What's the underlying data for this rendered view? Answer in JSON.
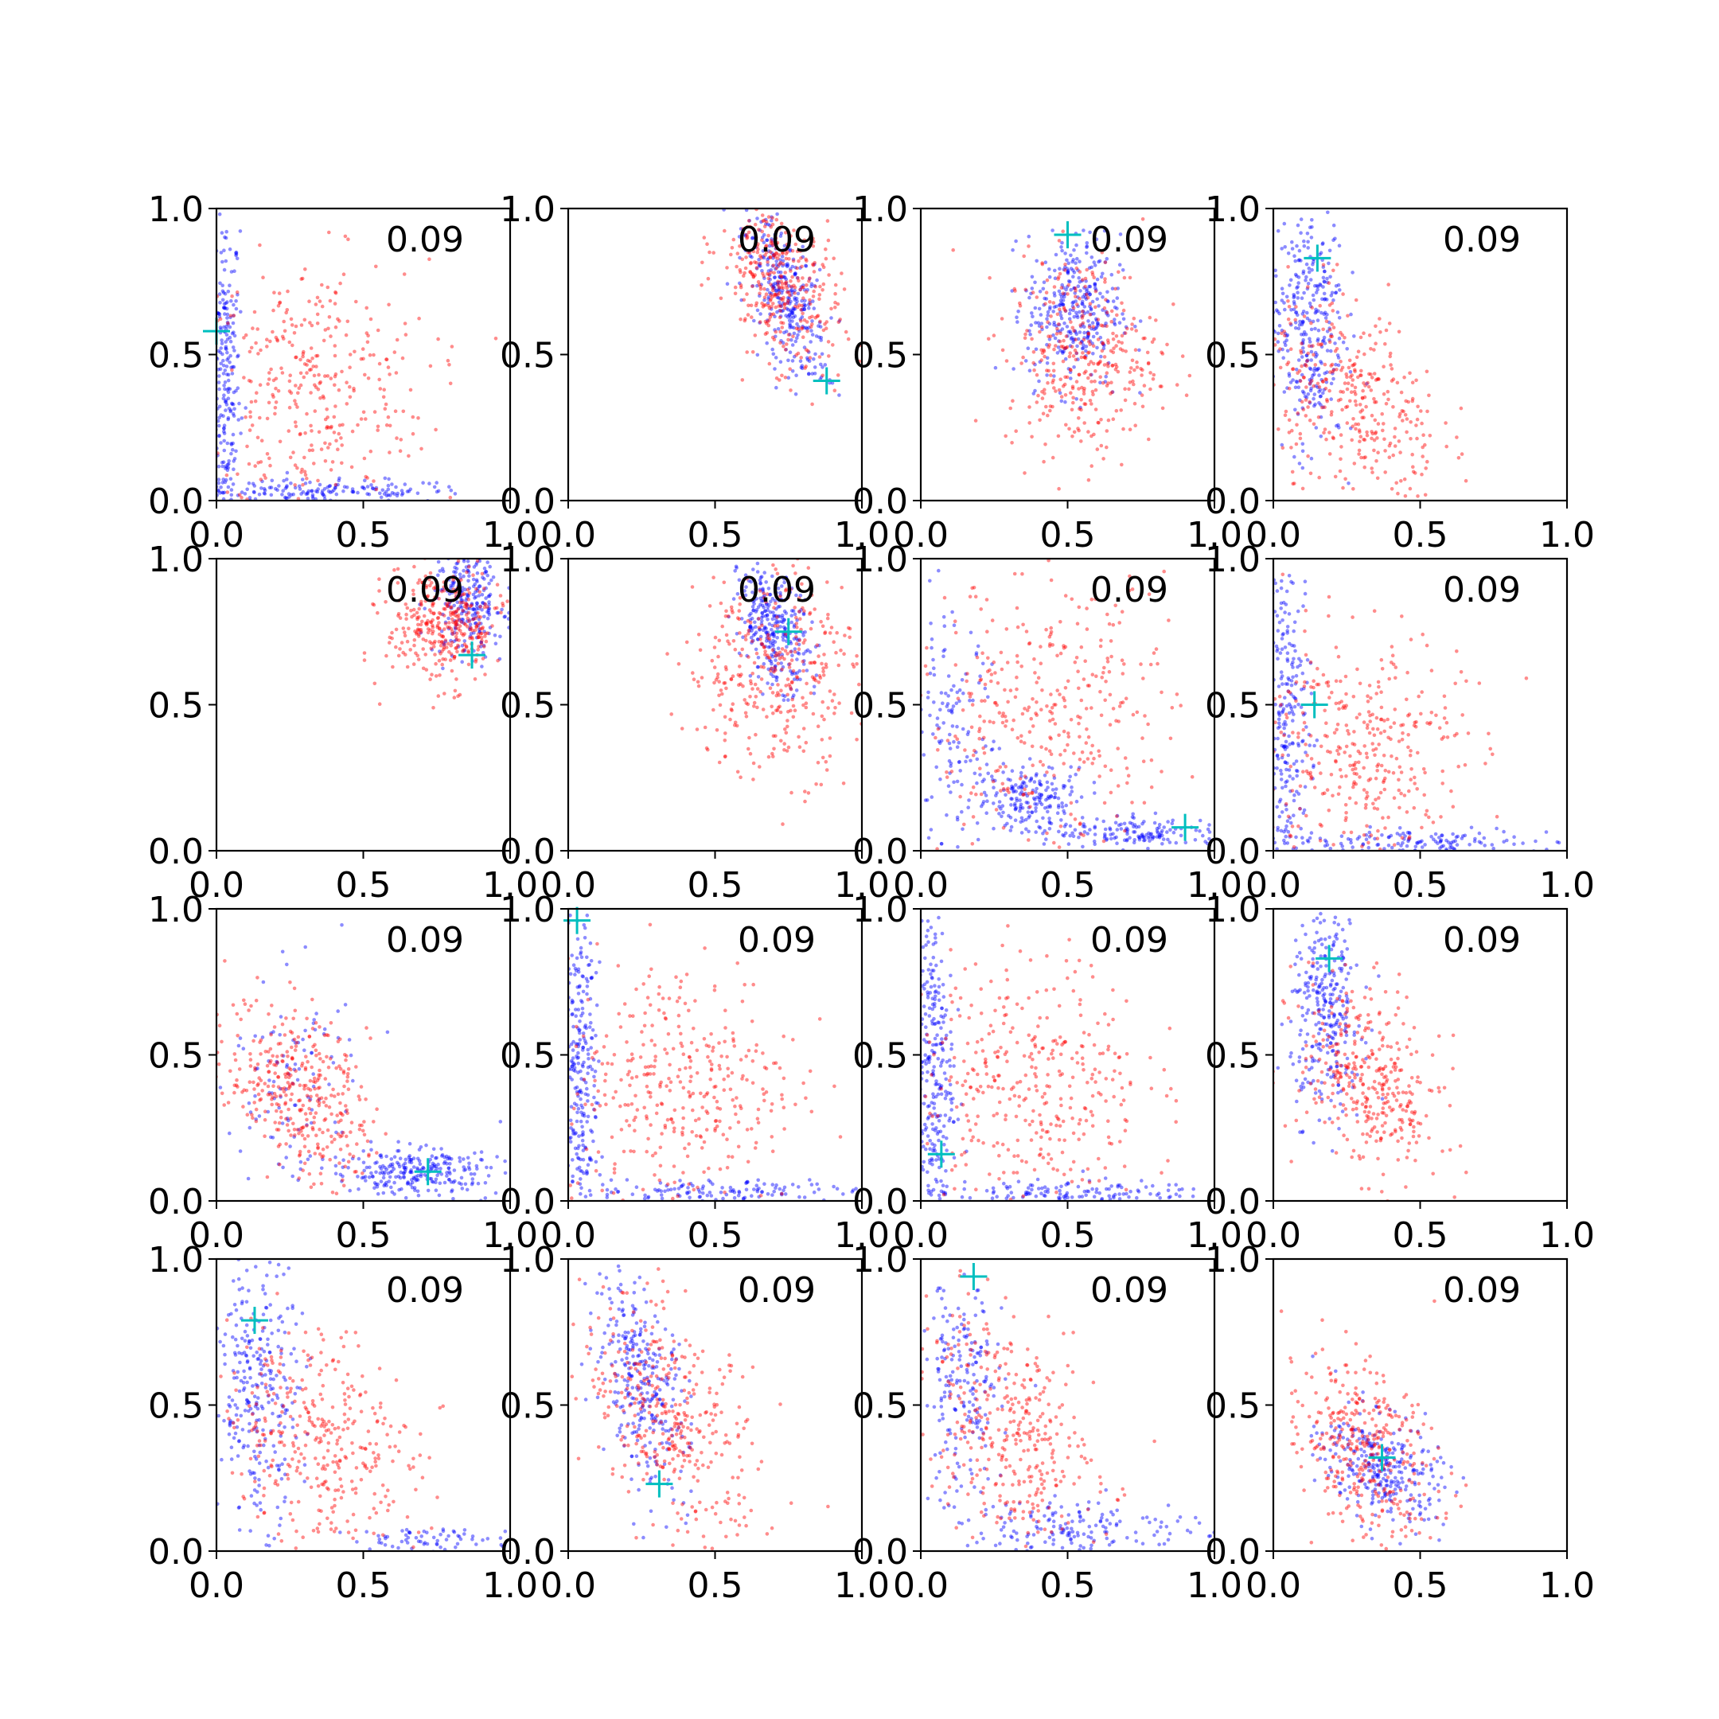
{
  "figure": {
    "layout": "4x4 grid of scatter plots",
    "colors": {
      "series_blue": "#0000ff",
      "series_red": "#ff0000",
      "marker": "#00bfbf",
      "axes": "#000000"
    }
  },
  "chart_data": [
    {
      "type": "scatter",
      "annotation": "0.09",
      "xlim": [
        0,
        1
      ],
      "ylim": [
        0,
        1
      ],
      "xticks": [
        "0.0",
        "0.5",
        "1.0"
      ],
      "yticks": [
        "0.0",
        "0.5",
        "1.0"
      ],
      "marker": {
        "x": 0.0,
        "y": 0.58
      },
      "clusters": {
        "blue": [
          {
            "cx": 0.03,
            "cy": 0.4,
            "sx": 0.025,
            "sy": 0.3,
            "n": 260
          },
          {
            "cx": 0.35,
            "cy": 0.03,
            "sx": 0.25,
            "sy": 0.02,
            "n": 170
          }
        ],
        "red": [
          {
            "cx": 0.32,
            "cy": 0.38,
            "sx": 0.2,
            "sy": 0.22,
            "n": 360
          }
        ]
      }
    },
    {
      "type": "scatter",
      "annotation": "0.09",
      "xlim": [
        0,
        1
      ],
      "ylim": [
        0,
        1
      ],
      "xticks": [
        "0.0",
        "0.5",
        "1.0"
      ],
      "yticks": [
        "0.0",
        "0.5",
        "1.0"
      ],
      "marker": {
        "x": 0.88,
        "y": 0.41
      },
      "clusters": {
        "blue": [
          {
            "cx": 0.74,
            "cy": 0.7,
            "sx": 0.07,
            "sy": 0.14,
            "n": 320,
            "rho": -0.6
          }
        ],
        "red": [
          {
            "cx": 0.72,
            "cy": 0.74,
            "sx": 0.1,
            "sy": 0.15,
            "n": 360,
            "rho": -0.4
          }
        ]
      }
    },
    {
      "type": "scatter",
      "annotation": "0.09",
      "xlim": [
        0,
        1
      ],
      "ylim": [
        0,
        1
      ],
      "xticks": [
        "0.0",
        "0.5",
        "1.0"
      ],
      "yticks": [
        "0.0",
        "0.5",
        "1.0"
      ],
      "marker": {
        "x": 0.5,
        "y": 0.91
      },
      "clusters": {
        "blue": [
          {
            "cx": 0.52,
            "cy": 0.65,
            "sx": 0.08,
            "sy": 0.13,
            "n": 330
          }
        ],
        "red": [
          {
            "cx": 0.55,
            "cy": 0.5,
            "sx": 0.13,
            "sy": 0.17,
            "n": 360
          }
        ]
      }
    },
    {
      "type": "scatter",
      "annotation": "0.09",
      "xlim": [
        0,
        1
      ],
      "ylim": [
        0,
        1
      ],
      "xticks": [
        "0.0",
        "0.5",
        "1.0"
      ],
      "yticks": [
        "0.0",
        "0.5",
        "1.0"
      ],
      "marker": {
        "x": 0.15,
        "y": 0.83
      },
      "clusters": {
        "blue": [
          {
            "cx": 0.12,
            "cy": 0.62,
            "sx": 0.06,
            "sy": 0.22,
            "n": 320
          }
        ],
        "red": [
          {
            "cx": 0.27,
            "cy": 0.35,
            "sx": 0.15,
            "sy": 0.18,
            "n": 360,
            "rho": -0.4
          }
        ]
      }
    },
    {
      "type": "scatter",
      "annotation": "0.09",
      "xlim": [
        0,
        1
      ],
      "ylim": [
        0,
        1
      ],
      "xticks": [
        "0.0",
        "0.5",
        "1.0"
      ],
      "yticks": [
        "0.0",
        "0.5",
        "1.0"
      ],
      "marker": {
        "x": 0.87,
        "y": 0.67
      },
      "clusters": {
        "blue": [
          {
            "cx": 0.86,
            "cy": 0.86,
            "sx": 0.06,
            "sy": 0.1,
            "n": 260
          }
        ],
        "red": [
          {
            "cx": 0.78,
            "cy": 0.77,
            "sx": 0.1,
            "sy": 0.1,
            "n": 360
          }
        ]
      }
    },
    {
      "type": "scatter",
      "annotation": "0.09",
      "xlim": [
        0,
        1
      ],
      "ylim": [
        0,
        1
      ],
      "xticks": [
        "0.0",
        "0.5",
        "1.0"
      ],
      "yticks": [
        "0.0",
        "0.5",
        "1.0"
      ],
      "marker": {
        "x": 0.75,
        "y": 0.75
      },
      "clusters": {
        "blue": [
          {
            "cx": 0.7,
            "cy": 0.76,
            "sx": 0.06,
            "sy": 0.1,
            "n": 300,
            "rho": -0.4
          }
        ],
        "red": [
          {
            "cx": 0.7,
            "cy": 0.62,
            "sx": 0.15,
            "sy": 0.18,
            "n": 360
          }
        ]
      }
    },
    {
      "type": "scatter",
      "annotation": "0.09",
      "xlim": [
        0,
        1
      ],
      "ylim": [
        0,
        1
      ],
      "xticks": [
        "0.0",
        "0.5",
        "1.0"
      ],
      "yticks": [
        "0.0",
        "0.5",
        "1.0"
      ],
      "marker": {
        "x": 0.9,
        "y": 0.08
      },
      "clusters": {
        "blue": [
          {
            "cx": 0.1,
            "cy": 0.4,
            "sx": 0.07,
            "sy": 0.2,
            "n": 120
          },
          {
            "cx": 0.38,
            "cy": 0.18,
            "sx": 0.1,
            "sy": 0.06,
            "n": 200
          },
          {
            "cx": 0.75,
            "cy": 0.06,
            "sx": 0.15,
            "sy": 0.025,
            "n": 140
          }
        ],
        "red": [
          {
            "cx": 0.42,
            "cy": 0.45,
            "sx": 0.22,
            "sy": 0.24,
            "n": 360
          }
        ]
      }
    },
    {
      "type": "scatter",
      "annotation": "0.09",
      "xlim": [
        0,
        1
      ],
      "ylim": [
        0,
        1
      ],
      "xticks": [
        "0.0",
        "0.5",
        "1.0"
      ],
      "yticks": [
        "0.0",
        "0.5",
        "1.0"
      ],
      "marker": {
        "x": 0.14,
        "y": 0.5
      },
      "clusters": {
        "blue": [
          {
            "cx": 0.05,
            "cy": 0.45,
            "sx": 0.04,
            "sy": 0.28,
            "n": 260
          },
          {
            "cx": 0.45,
            "cy": 0.03,
            "sx": 0.25,
            "sy": 0.02,
            "n": 140
          }
        ],
        "red": [
          {
            "cx": 0.3,
            "cy": 0.35,
            "sx": 0.17,
            "sy": 0.2,
            "n": 360
          }
        ]
      }
    },
    {
      "type": "scatter",
      "annotation": "0.09",
      "xlim": [
        0,
        1
      ],
      "ylim": [
        0,
        1
      ],
      "xticks": [
        "0.0",
        "0.5",
        "1.0"
      ],
      "yticks": [
        "0.0",
        "0.5",
        "1.0"
      ],
      "marker": {
        "x": 0.72,
        "y": 0.1
      },
      "clusters": {
        "blue": [
          {
            "cx": 0.25,
            "cy": 0.4,
            "sx": 0.12,
            "sy": 0.2,
            "n": 110
          },
          {
            "cx": 0.68,
            "cy": 0.1,
            "sx": 0.15,
            "sy": 0.04,
            "n": 260
          }
        ],
        "red": [
          {
            "cx": 0.28,
            "cy": 0.38,
            "sx": 0.12,
            "sy": 0.15,
            "n": 360,
            "rho": -0.4
          }
        ]
      }
    },
    {
      "type": "scatter",
      "annotation": "0.09",
      "xlim": [
        0,
        1
      ],
      "ylim": [
        0,
        1
      ],
      "xticks": [
        "0.0",
        "0.5",
        "1.0"
      ],
      "yticks": [
        "0.0",
        "0.5",
        "1.0"
      ],
      "marker": {
        "x": 0.03,
        "y": 0.96
      },
      "clusters": {
        "blue": [
          {
            "cx": 0.04,
            "cy": 0.45,
            "sx": 0.035,
            "sy": 0.28,
            "n": 280
          },
          {
            "cx": 0.45,
            "cy": 0.03,
            "sx": 0.28,
            "sy": 0.02,
            "n": 140
          }
        ],
        "red": [
          {
            "cx": 0.38,
            "cy": 0.4,
            "sx": 0.2,
            "sy": 0.22,
            "n": 360
          }
        ]
      }
    },
    {
      "type": "scatter",
      "annotation": "0.09",
      "xlim": [
        0,
        1
      ],
      "ylim": [
        0,
        1
      ],
      "xticks": [
        "0.0",
        "0.5",
        "1.0"
      ],
      "yticks": [
        "0.0",
        "0.5",
        "1.0"
      ],
      "marker": {
        "x": 0.07,
        "y": 0.16
      },
      "clusters": {
        "blue": [
          {
            "cx": 0.04,
            "cy": 0.45,
            "sx": 0.035,
            "sy": 0.28,
            "n": 280
          },
          {
            "cx": 0.45,
            "cy": 0.03,
            "sx": 0.28,
            "sy": 0.02,
            "n": 140
          }
        ],
        "red": [
          {
            "cx": 0.38,
            "cy": 0.4,
            "sx": 0.19,
            "sy": 0.22,
            "n": 360
          }
        ]
      }
    },
    {
      "type": "scatter",
      "annotation": "0.09",
      "xlim": [
        0,
        1
      ],
      "ylim": [
        0,
        1
      ],
      "xticks": [
        "0.0",
        "0.5",
        "1.0"
      ],
      "yticks": [
        "0.0",
        "0.5",
        "1.0"
      ],
      "marker": {
        "x": 0.19,
        "y": 0.83
      },
      "clusters": {
        "blue": [
          {
            "cx": 0.18,
            "cy": 0.66,
            "sx": 0.06,
            "sy": 0.18,
            "n": 300
          }
        ],
        "red": [
          {
            "cx": 0.33,
            "cy": 0.4,
            "sx": 0.12,
            "sy": 0.17,
            "n": 360,
            "rho": -0.4
          }
        ]
      }
    },
    {
      "type": "scatter",
      "annotation": "0.09",
      "xlim": [
        0,
        1
      ],
      "ylim": [
        0,
        1
      ],
      "xticks": [
        "0.0",
        "0.5",
        "1.0"
      ],
      "yticks": [
        "0.0",
        "0.5",
        "1.0"
      ],
      "marker": {
        "x": 0.13,
        "y": 0.79
      },
      "clusters": {
        "blue": [
          {
            "cx": 0.14,
            "cy": 0.55,
            "sx": 0.07,
            "sy": 0.22,
            "n": 280
          },
          {
            "cx": 0.75,
            "cy": 0.04,
            "sx": 0.15,
            "sy": 0.02,
            "n": 70
          }
        ],
        "red": [
          {
            "cx": 0.35,
            "cy": 0.38,
            "sx": 0.17,
            "sy": 0.2,
            "n": 360,
            "rho": -0.3
          }
        ]
      }
    },
    {
      "type": "scatter",
      "annotation": "0.09",
      "xlim": [
        0,
        1
      ],
      "ylim": [
        0,
        1
      ],
      "xticks": [
        "0.0",
        "0.5",
        "1.0"
      ],
      "yticks": [
        "0.0",
        "0.5",
        "1.0"
      ],
      "marker": {
        "x": 0.31,
        "y": 0.23
      },
      "clusters": {
        "blue": [
          {
            "cx": 0.25,
            "cy": 0.58,
            "sx": 0.08,
            "sy": 0.18,
            "n": 300,
            "rho": -0.5
          }
        ],
        "red": [
          {
            "cx": 0.35,
            "cy": 0.45,
            "sx": 0.15,
            "sy": 0.2,
            "n": 360,
            "rho": -0.5
          }
        ]
      }
    },
    {
      "type": "scatter",
      "annotation": "0.09",
      "xlim": [
        0,
        1
      ],
      "ylim": [
        0,
        1
      ],
      "xticks": [
        "0.0",
        "0.5",
        "1.0"
      ],
      "yticks": [
        "0.0",
        "0.5",
        "1.0"
      ],
      "marker": {
        "x": 0.18,
        "y": 0.94
      },
      "clusters": {
        "blue": [
          {
            "cx": 0.14,
            "cy": 0.55,
            "sx": 0.07,
            "sy": 0.2,
            "n": 200
          },
          {
            "cx": 0.55,
            "cy": 0.08,
            "sx": 0.2,
            "sy": 0.05,
            "n": 160
          }
        ],
        "red": [
          {
            "cx": 0.3,
            "cy": 0.42,
            "sx": 0.15,
            "sy": 0.2,
            "n": 360,
            "rho": -0.4
          }
        ]
      }
    },
    {
      "type": "scatter",
      "annotation": "0.09",
      "xlim": [
        0,
        1
      ],
      "ylim": [
        0,
        1
      ],
      "xticks": [
        "0.0",
        "0.5",
        "1.0"
      ],
      "yticks": [
        "0.0",
        "0.5",
        "1.0"
      ],
      "marker": {
        "x": 0.37,
        "y": 0.32
      },
      "clusters": {
        "blue": [
          {
            "cx": 0.37,
            "cy": 0.28,
            "sx": 0.1,
            "sy": 0.1,
            "n": 300,
            "rho": -0.4
          }
        ],
        "red": [
          {
            "cx": 0.3,
            "cy": 0.35,
            "sx": 0.13,
            "sy": 0.16,
            "n": 360,
            "rho": -0.4
          }
        ]
      }
    }
  ]
}
